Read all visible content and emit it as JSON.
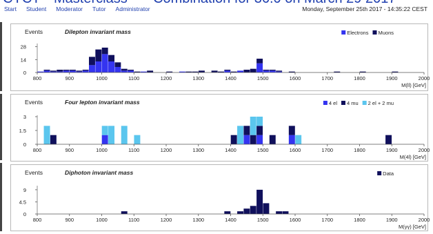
{
  "header": {
    "banner_left": "CYCT",
    "banner_mid": "Masterclass",
    "banner_right": "Combination for 36.0 on March 29 2017",
    "nav": [
      "Start",
      "Student",
      "Moderator",
      "Tutor",
      "Administrator"
    ],
    "datetime": "Monday, September 25th 2017 - 14:35:22 CEST"
  },
  "colors": {
    "blue": "#3434f0",
    "navy": "#10105c",
    "light": "#5bc6ee",
    "nav": "#1f3fae"
  },
  "chart_data": [
    {
      "type": "bar",
      "stacked": true,
      "title": "Dilepton invariant mass",
      "ylabel": "Events",
      "xlabel": "M(ll) [GeV]",
      "xlim": [
        800,
        2000
      ],
      "ylim": [
        0,
        30
      ],
      "yticks": [
        0,
        14,
        28
      ],
      "xticks": [
        800,
        900,
        1000,
        1100,
        1200,
        1300,
        1400,
        1500,
        1600,
        1700,
        1800,
        1900,
        2000
      ],
      "bin_width": 20,
      "legend_position": "top-right",
      "series": [
        {
          "name": "Electrons",
          "color": "#3434f0",
          "points": [
            [
              800,
              1
            ],
            [
              820,
              2
            ],
            [
              840,
              1
            ],
            [
              860,
              1
            ],
            [
              880,
              2
            ],
            [
              900,
              2
            ],
            [
              920,
              1
            ],
            [
              940,
              2
            ],
            [
              960,
              8
            ],
            [
              980,
              12
            ],
            [
              1000,
              20
            ],
            [
              1020,
              12
            ],
            [
              1040,
              6
            ],
            [
              1060,
              2
            ],
            [
              1080,
              2
            ],
            [
              1120,
              1
            ],
            [
              1240,
              1
            ],
            [
              1380,
              2
            ],
            [
              1420,
              2
            ],
            [
              1480,
              10
            ],
            [
              1500,
              2
            ],
            [
              1520,
              2
            ],
            [
              1540,
              1
            ]
          ]
        },
        {
          "name": "Muons",
          "color": "#10105c",
          "points": [
            [
              820,
              1
            ],
            [
              840,
              1
            ],
            [
              860,
              2
            ],
            [
              880,
              1
            ],
            [
              900,
              1
            ],
            [
              920,
              1
            ],
            [
              940,
              1
            ],
            [
              960,
              9
            ],
            [
              980,
              13
            ],
            [
              1000,
              7
            ],
            [
              1020,
              7
            ],
            [
              1040,
              5
            ],
            [
              1060,
              2
            ],
            [
              1080,
              1
            ],
            [
              1100,
              1
            ],
            [
              1140,
              2
            ],
            [
              1200,
              1
            ],
            [
              1260,
              1
            ],
            [
              1280,
              1
            ],
            [
              1300,
              2
            ],
            [
              1340,
              2
            ],
            [
              1360,
              1
            ],
            [
              1380,
              1
            ],
            [
              1400,
              1
            ],
            [
              1440,
              3
            ],
            [
              1460,
              4
            ],
            [
              1480,
              5
            ],
            [
              1500,
              1
            ],
            [
              1520,
              1
            ],
            [
              1540,
              1
            ],
            [
              1580,
              1
            ],
            [
              1720,
              1
            ],
            [
              1800,
              1
            ],
            [
              1900,
              1
            ]
          ]
        }
      ]
    },
    {
      "type": "bar",
      "stacked": true,
      "title": "Four lepton invariant mass",
      "ylabel": "Events",
      "xlabel": "M(4l) [GeV]",
      "xlim": [
        800,
        2000
      ],
      "ylim": [
        0,
        3
      ],
      "yticks": [
        0,
        1.5,
        3
      ],
      "xticks": [
        800,
        900,
        1000,
        1100,
        1200,
        1300,
        1400,
        1500,
        1600,
        1700,
        1800,
        1900,
        2000
      ],
      "bin_width": 20,
      "legend_position": "top-right",
      "series": [
        {
          "name": "4 el",
          "color": "#3434f0",
          "points": [
            [
              1000,
              1
            ],
            [
              1440,
              1
            ],
            [
              1480,
              1
            ],
            [
              1580,
              1
            ]
          ]
        },
        {
          "name": "4 mu",
          "color": "#10105c",
          "points": [
            [
              840,
              1
            ],
            [
              1400,
              1
            ],
            [
              1440,
              1
            ],
            [
              1460,
              1
            ],
            [
              1480,
              1
            ],
            [
              1520,
              1
            ],
            [
              1580,
              1
            ],
            [
              1880,
              1
            ]
          ]
        },
        {
          "name": "2 el + 2 mu",
          "color": "#5bc6ee",
          "points": [
            [
              820,
              2
            ],
            [
              1000,
              1
            ],
            [
              1020,
              2
            ],
            [
              1060,
              2
            ],
            [
              1100,
              1
            ],
            [
              1420,
              2
            ],
            [
              1460,
              2
            ],
            [
              1480,
              1
            ],
            [
              1600,
              1
            ]
          ]
        }
      ]
    },
    {
      "type": "bar",
      "stacked": true,
      "title": "Diphoton invariant mass",
      "ylabel": "Events",
      "xlabel": "M(γγ) [GeV]",
      "xlim": [
        800,
        2000
      ],
      "ylim": [
        0,
        10
      ],
      "yticks": [
        0,
        4.5,
        9
      ],
      "xticks": [
        800,
        900,
        1000,
        1100,
        1200,
        1300,
        1400,
        1500,
        1600,
        1700,
        1800,
        1900,
        2000
      ],
      "bin_width": 20,
      "legend_position": "top-right",
      "series": [
        {
          "name": "Data",
          "color": "#10105c",
          "points": [
            [
              1060,
              1
            ],
            [
              1380,
              1
            ],
            [
              1420,
              1
            ],
            [
              1440,
              2
            ],
            [
              1460,
              3
            ],
            [
              1480,
              9
            ],
            [
              1500,
              4
            ],
            [
              1540,
              1
            ],
            [
              1560,
              1
            ]
          ]
        }
      ]
    }
  ]
}
